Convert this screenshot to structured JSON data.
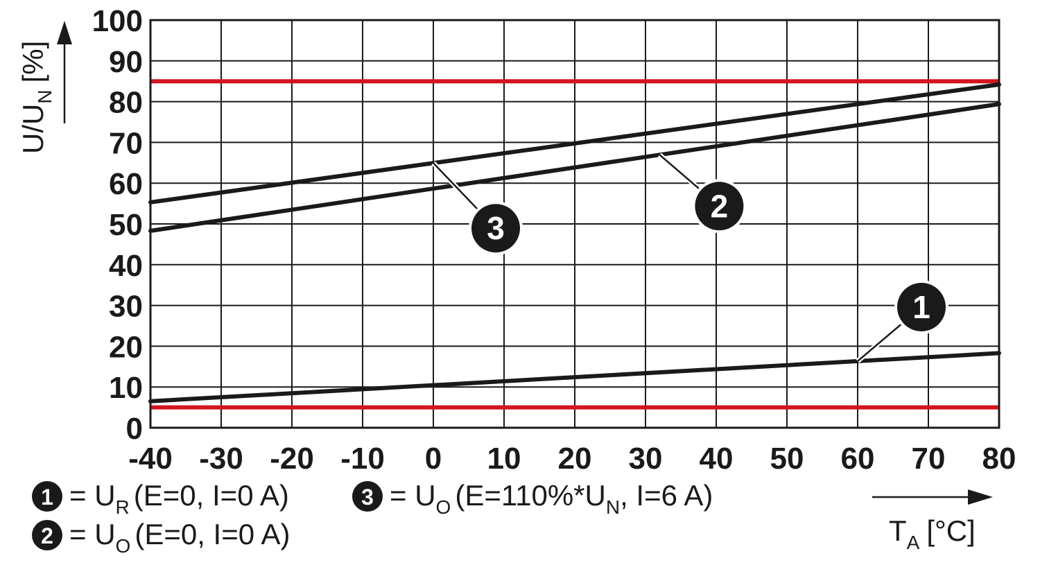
{
  "chart_data": {
    "type": "line",
    "x_axis": {
      "label": "T",
      "label_sub": "A",
      "unit": "[°C]",
      "range": [
        -40,
        80
      ],
      "ticks": [
        "-40",
        "-30",
        "-20",
        "-10",
        "0",
        "10",
        "20",
        "30",
        "40",
        "50",
        "60",
        "70",
        "80"
      ]
    },
    "y_axis": {
      "label": "U/U",
      "label_sub": "N",
      "unit": "[%]",
      "range": [
        0,
        100
      ],
      "ticks": [
        "0",
        "10",
        "20",
        "30",
        "40",
        "50",
        "60",
        "70",
        "80",
        "90",
        "100"
      ]
    },
    "grid": true,
    "colors": {
      "series": "#1a1a1a",
      "limit": "#d3151f",
      "grid": "#1a1a1a"
    },
    "series": [
      {
        "id": "1",
        "x": [
          -40,
          80
        ],
        "y": [
          6.5,
          18.3
        ],
        "annotation_at_x": 60
      },
      {
        "id": "2",
        "x": [
          -40,
          80
        ],
        "y": [
          48.3,
          79.4
        ],
        "annotation_at_x": 32
      },
      {
        "id": "3",
        "x": [
          -40,
          80
        ],
        "y": [
          55.3,
          84.2
        ],
        "annotation_at_x": 0
      }
    ],
    "reference_lines": [
      {
        "y": 85
      },
      {
        "y": 5
      }
    ],
    "legend": [
      {
        "marker": "1",
        "symbol": "U",
        "symbol_sub": "R",
        "text": "(E=0, I=0 A)"
      },
      {
        "marker": "2",
        "symbol": "U",
        "symbol_sub": "O",
        "text": "(E=0, I=0 A)"
      },
      {
        "marker": "3",
        "symbol": "U",
        "symbol_sub": "O",
        "text": "(E=110%*U",
        "text_sub": "N",
        "text_after": ", I=6 A)"
      }
    ]
  }
}
